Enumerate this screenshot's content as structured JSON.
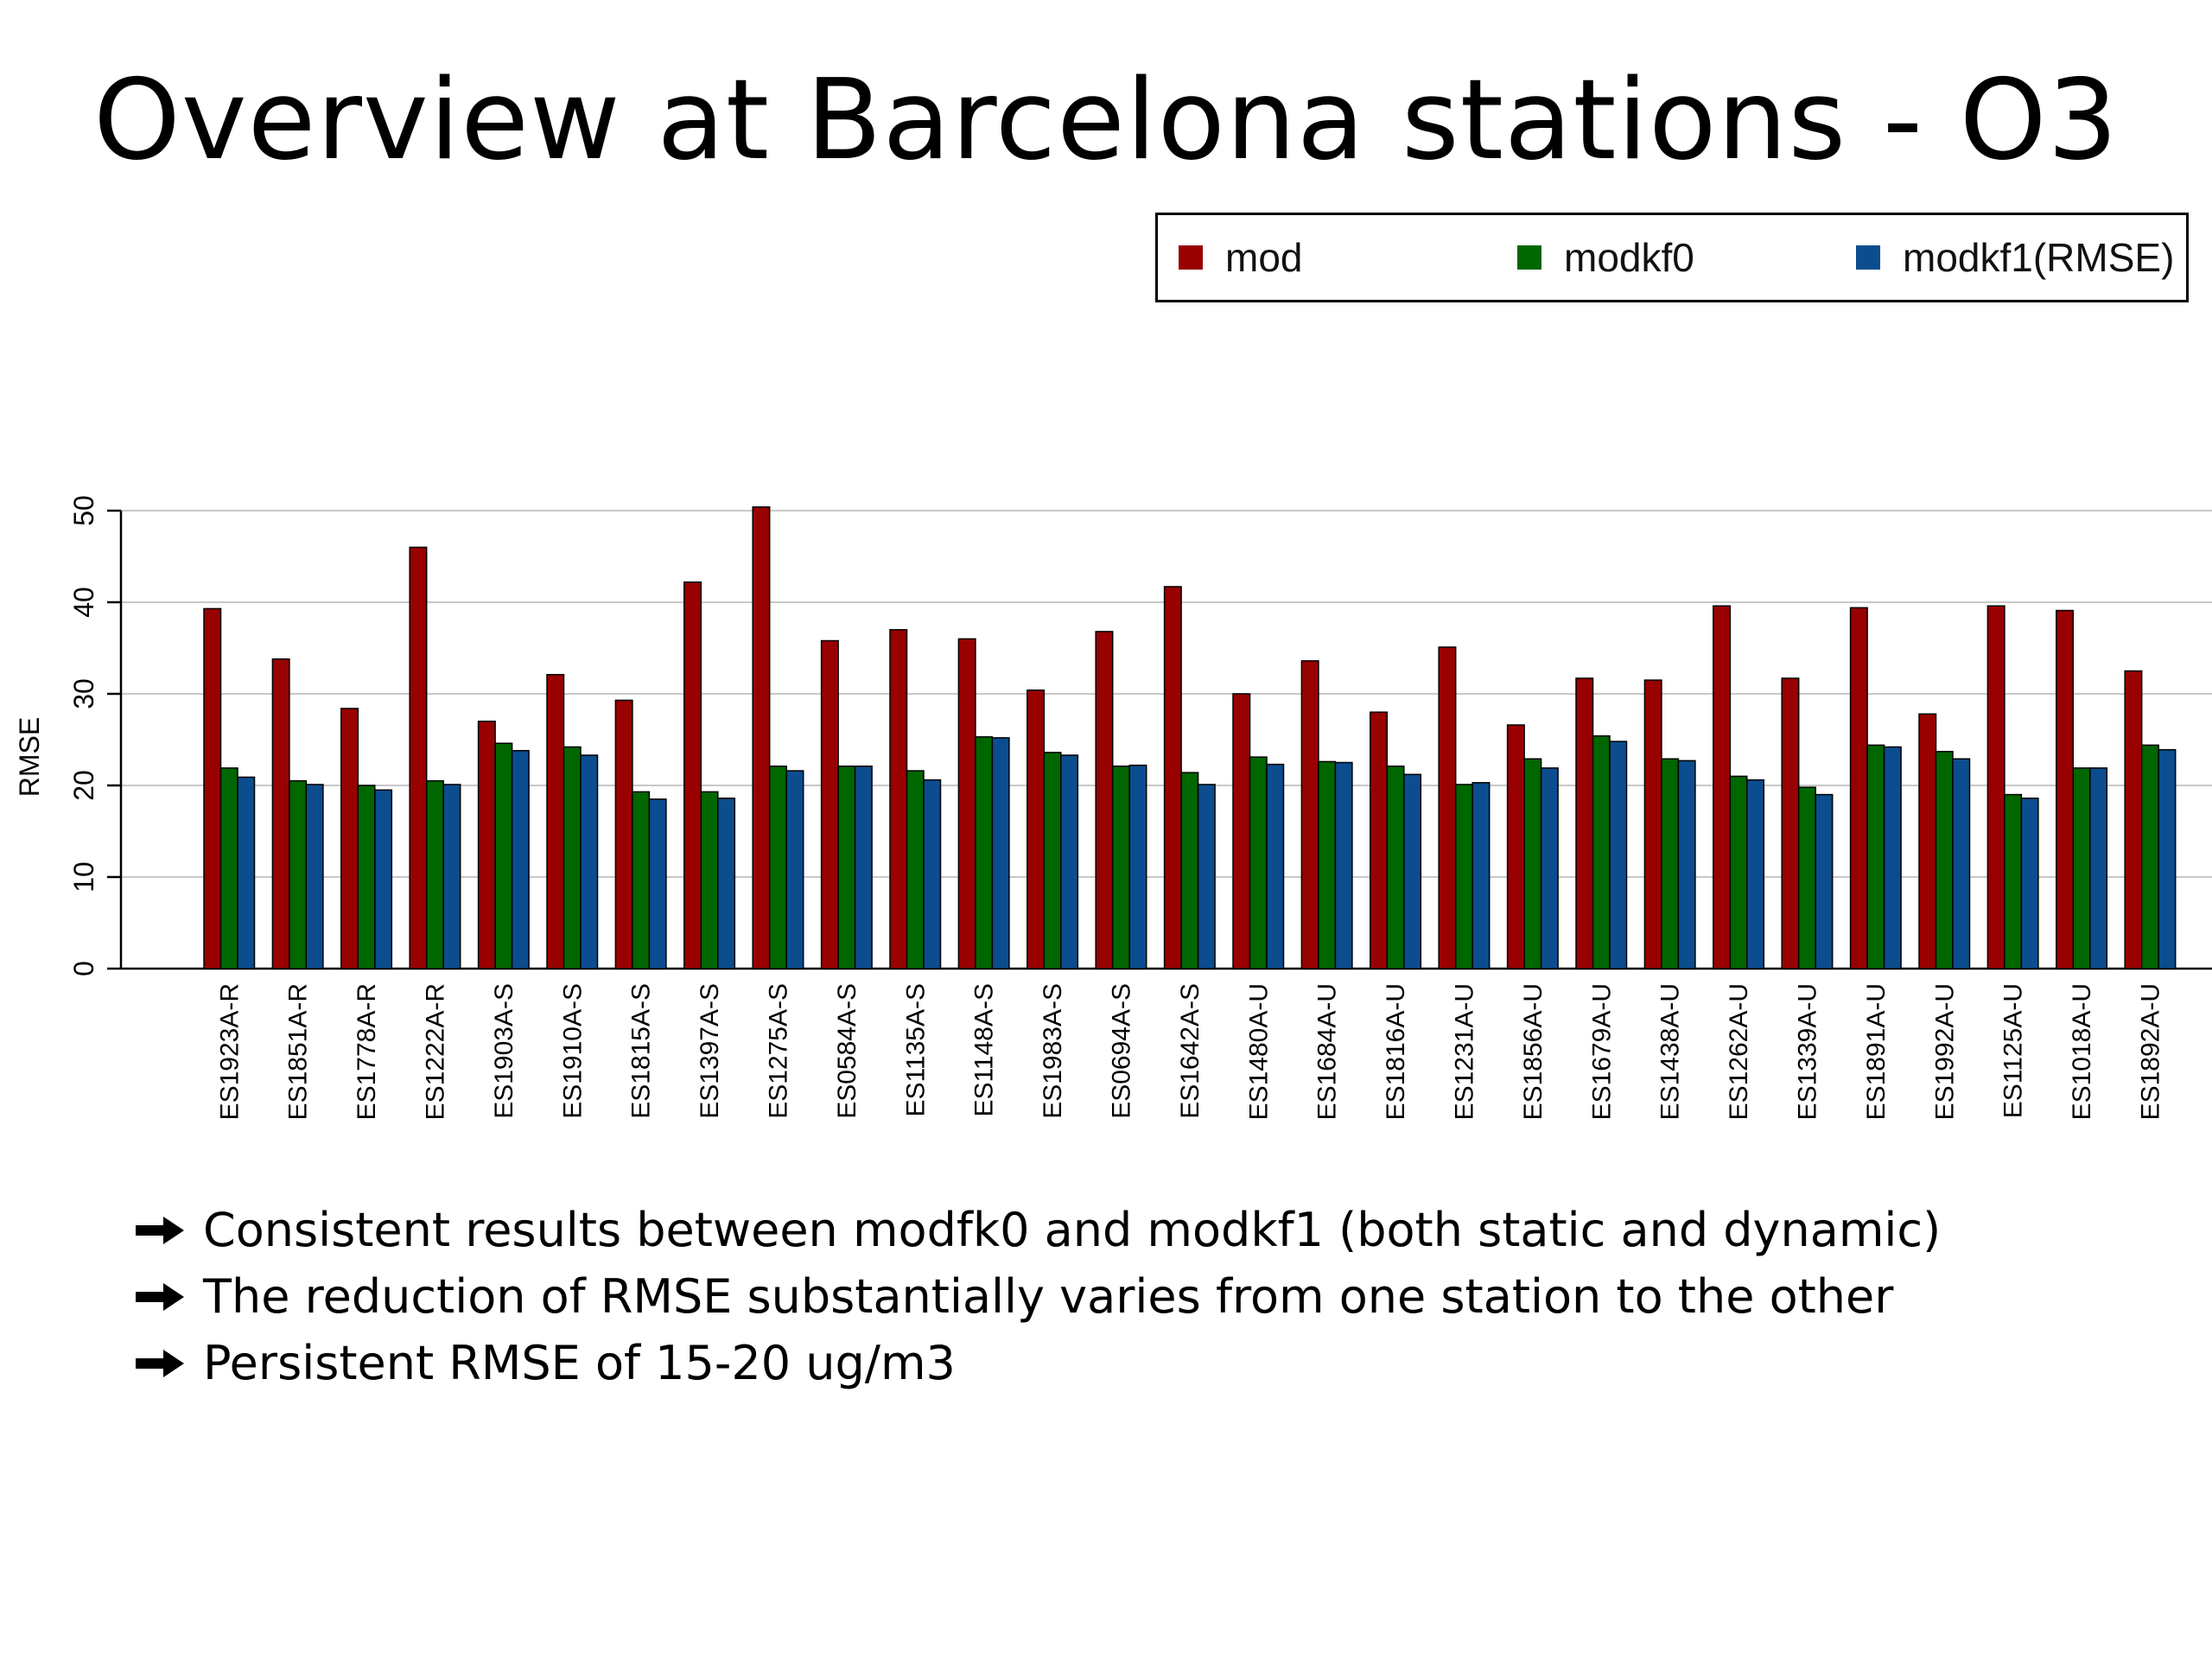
{
  "slide": {
    "title": "Overview at Barcelona stations - O3",
    "bullets": [
      "Consistent results between modfk0 and modkf1 (both static and dynamic)",
      "The reduction of RMSE substantially varies from one station to the other",
      "Persistent RMSE of 15-20 ug/m3"
    ],
    "bullet_icon": "arrow-right-icon"
  },
  "chart_data": {
    "type": "bar",
    "ylabel": "RMSE",
    "ylim": [
      0,
      50
    ],
    "yticks": [
      0,
      10,
      20,
      30,
      40,
      50
    ],
    "grid": true,
    "legend_position": "top-right",
    "categories": [
      "ES1923A-R",
      "ES1851A-R",
      "ES1778A-R",
      "ES1222A-R",
      "ES1903A-S",
      "ES1910A-S",
      "ES1815A-S",
      "ES1397A-S",
      "ES1275A-S",
      "ES0584A-S",
      "ES1135A-S",
      "ES1148A-S",
      "ES1983A-S",
      "ES0694A-S",
      "ES1642A-S",
      "ES1480A-U",
      "ES1684A-U",
      "ES1816A-U",
      "ES1231A-U",
      "ES1856A-U",
      "ES1679A-U",
      "ES1438A-U",
      "ES1262A-U",
      "ES1339A-U",
      "ES1891A-U",
      "ES1992A-U",
      "ES1125A-U",
      "ES1018A-U",
      "ES1892A-U"
    ],
    "series": [
      {
        "name": "mod",
        "color": "#990000",
        "values": [
          39.3,
          33.8,
          28.4,
          46.0,
          27.0,
          32.1,
          29.3,
          42.2,
          50.4,
          35.8,
          37.0,
          36.0,
          30.4,
          36.8,
          41.7,
          30.0,
          33.6,
          28.0,
          35.1,
          26.6,
          31.7,
          31.5,
          39.6,
          31.7,
          39.4,
          27.8,
          39.6,
          39.1,
          32.5
        ]
      },
      {
        "name": "modkf0",
        "color": "#006600",
        "values": [
          21.9,
          20.5,
          20.0,
          20.5,
          24.6,
          24.2,
          19.3,
          19.3,
          22.1,
          22.1,
          21.6,
          25.3,
          23.6,
          22.1,
          21.4,
          23.1,
          22.6,
          22.1,
          20.1,
          22.9,
          25.4,
          22.9,
          21.0,
          19.8,
          24.4,
          23.7,
          19.0,
          21.9,
          24.4
        ]
      },
      {
        "name": "modkf1(RMSE)",
        "color": "#0b4d8f",
        "values": [
          20.9,
          20.1,
          19.5,
          20.1,
          23.8,
          23.3,
          18.5,
          18.6,
          21.6,
          22.1,
          20.6,
          25.2,
          23.3,
          22.2,
          20.1,
          22.3,
          22.5,
          21.2,
          20.3,
          21.9,
          24.8,
          22.7,
          20.6,
          19.0,
          24.2,
          22.9,
          18.6,
          21.9,
          23.9
        ]
      }
    ]
  }
}
